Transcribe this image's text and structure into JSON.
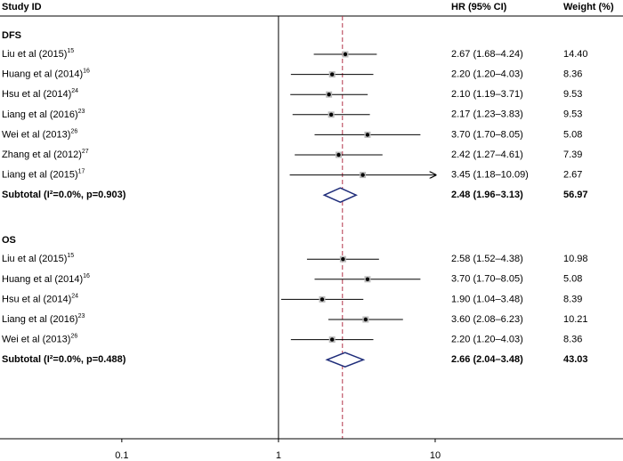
{
  "chart_data": {
    "type": "forest",
    "headers": {
      "study": "Study ID",
      "estimate": "HR (95% CI)",
      "weight": "Weight (%)"
    },
    "xlog": true,
    "xlim": [
      0.0167,
      158
    ],
    "xticks": [
      0.1,
      1,
      10
    ],
    "null_line": 1,
    "pooled_line": 2.56,
    "pooled_line_color": "#b2334a",
    "diamond_color": "#1f2d7a",
    "groups": [
      {
        "name": "DFS",
        "studies": [
          {
            "label": "Liu et al (2015)",
            "ref": "15",
            "hr": 2.67,
            "lo": 1.68,
            "hi": 4.24,
            "ci_label": "2.67 (1.68–4.24)",
            "weight": "14.40"
          },
          {
            "label": "Huang et al (2014)",
            "ref": "16",
            "hr": 2.2,
            "lo": 1.2,
            "hi": 4.03,
            "ci_label": "2.20 (1.20–4.03)",
            "weight": "8.36"
          },
          {
            "label": "Hsu et al (2014)",
            "ref": "24",
            "hr": 2.1,
            "lo": 1.19,
            "hi": 3.71,
            "ci_label": "2.10 (1.19–3.71)",
            "weight": "9.53"
          },
          {
            "label": "Liang et al (2016)",
            "ref": "23",
            "hr": 2.17,
            "lo": 1.23,
            "hi": 3.83,
            "ci_label": "2.17 (1.23–3.83)",
            "weight": "9.53"
          },
          {
            "label": "Wei et al (2013)",
            "ref": "26",
            "hr": 3.7,
            "lo": 1.7,
            "hi": 8.05,
            "ci_label": "3.70 (1.70–8.05)",
            "weight": "5.08"
          },
          {
            "label": "Zhang et al (2012)",
            "ref": "27",
            "hr": 2.42,
            "lo": 1.27,
            "hi": 4.61,
            "ci_label": "2.42 (1.27–4.61)",
            "weight": "7.39"
          },
          {
            "label": "Liang et al (2015)",
            "ref": "17",
            "hr": 3.45,
            "lo": 1.18,
            "hi": 10.09,
            "ci_label": "3.45 (1.18–10.09)",
            "weight": "2.67",
            "arrow": true
          }
        ],
        "subtotal": {
          "label": "Subtotal (I²=0.0%, p=0.903)",
          "hr": 2.48,
          "lo": 1.96,
          "hi": 3.13,
          "ci_label": "2.48 (1.96–3.13)",
          "weight": "56.97"
        }
      },
      {
        "name": "OS",
        "studies": [
          {
            "label": "Liu et al (2015)",
            "ref": "15",
            "hr": 2.58,
            "lo": 1.52,
            "hi": 4.38,
            "ci_label": "2.58 (1.52–4.38)",
            "weight": "10.98"
          },
          {
            "label": "Huang et al (2014)",
            "ref": "16",
            "hr": 3.7,
            "lo": 1.7,
            "hi": 8.05,
            "ci_label": "3.70 (1.70–8.05)",
            "weight": "5.08"
          },
          {
            "label": "Hsu et al (2014)",
            "ref": "24",
            "hr": 1.9,
            "lo": 1.04,
            "hi": 3.48,
            "ci_label": "1.90 (1.04–3.48)",
            "weight": "8.39"
          },
          {
            "label": "Liang et al (2016)",
            "ref": "23",
            "hr": 3.6,
            "lo": 2.08,
            "hi": 6.23,
            "ci_label": "3.60 (2.08–6.23)",
            "weight": "10.21"
          },
          {
            "label": "Wei et al (2013)",
            "ref": "26",
            "hr": 2.2,
            "lo": 1.2,
            "hi": 4.03,
            "ci_label": "2.20 (1.20–4.03)",
            "weight": "8.36"
          }
        ],
        "subtotal": {
          "label": "Subtotal (I²=0.0%, p=0.488)",
          "hr": 2.66,
          "lo": 2.04,
          "hi": 3.48,
          "ci_label": "2.66 (2.04–3.48)",
          "weight": "43.03"
        }
      }
    ]
  }
}
